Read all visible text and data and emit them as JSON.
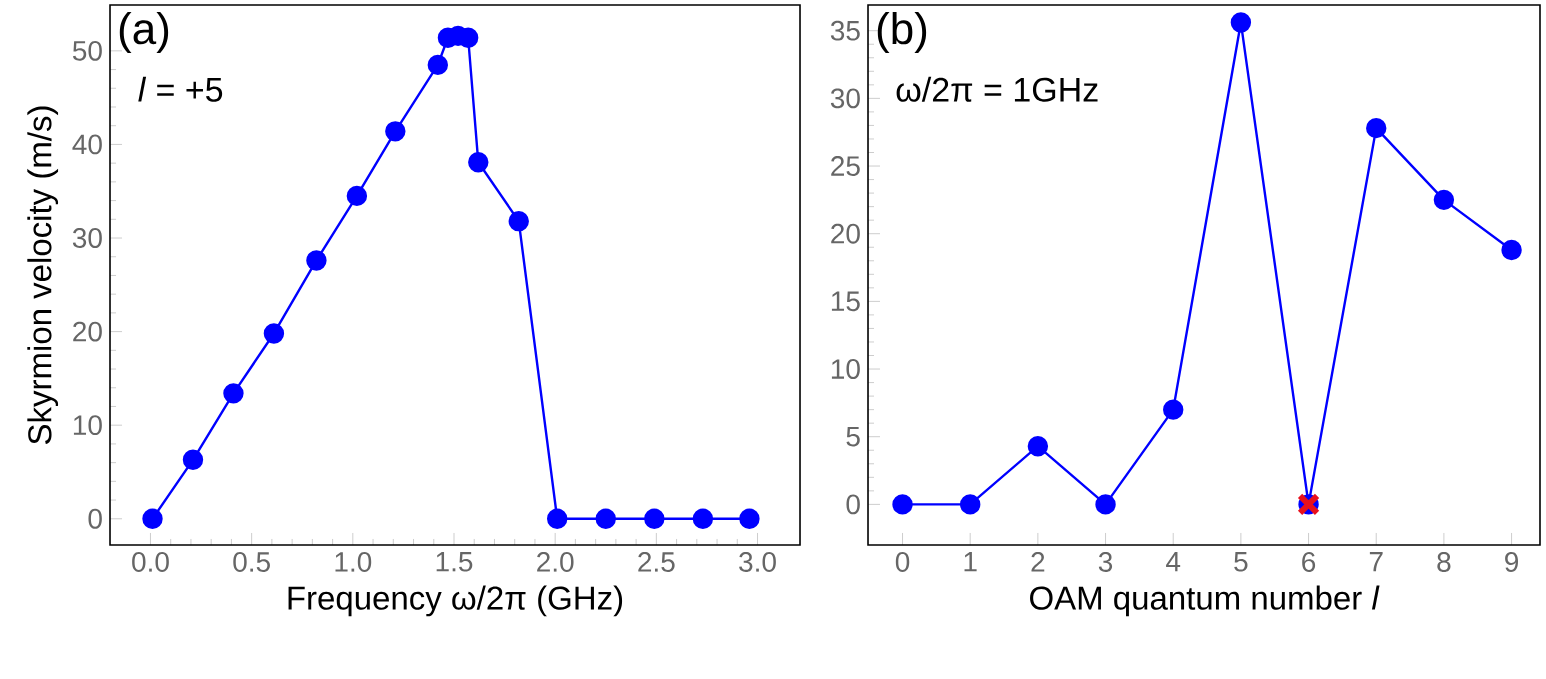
{
  "chart_data": [
    {
      "type": "line",
      "xlabel": "Frequency ω/2π (GHz)",
      "ylabel": "Skyrmion velocity (m/s)",
      "annotations": [
        "(a)",
        "*l* = +5"
      ],
      "x": [
        0.01,
        0.21,
        0.41,
        0.61,
        0.82,
        1.02,
        1.21,
        1.42,
        1.47,
        1.52,
        1.57,
        1.62,
        1.82,
        2.01,
        2.25,
        2.49,
        2.73,
        2.96
      ],
      "series": [
        {
          "color": "#0000ff",
          "values": [
            0,
            6.3,
            13.4,
            19.8,
            27.6,
            34.5,
            41.4,
            48.5,
            51.4,
            51.6,
            51.4,
            38.1,
            31.8,
            0,
            0,
            0,
            0,
            0
          ]
        }
      ],
      "xlim": [
        -0.2,
        3.21
      ],
      "ylim": [
        -2.8,
        54.9
      ],
      "xticks": [
        {
          "value": 0,
          "label": "0.0"
        },
        {
          "value": 0.5,
          "label": "0.5"
        },
        {
          "value": 1,
          "label": "1.0"
        },
        {
          "value": 1.5,
          "label": "1.5"
        },
        {
          "value": 2,
          "label": "2.0"
        },
        {
          "value": 2.5,
          "label": "2.5"
        },
        {
          "value": 3,
          "label": "3.0"
        }
      ],
      "yticks": [
        0,
        10,
        20,
        30,
        40,
        50
      ],
      "marker": "circle",
      "line_style": "solid"
    },
    {
      "type": "line",
      "xlabel": "OAM quantum number *l*",
      "annotations": [
        "(b)",
        "ω/2π = 1GHz"
      ],
      "x": [
        0,
        1,
        2,
        3,
        4,
        5,
        6,
        7,
        8,
        9
      ],
      "series": [
        {
          "color": "#0000ff",
          "values": [
            0,
            0,
            4.3,
            0,
            7,
            35.6,
            0,
            27.8,
            22.5,
            18.8
          ]
        },
        {
          "type": "scatter",
          "color": "#e8101c",
          "x": [
            6
          ],
          "values": [
            0
          ],
          "marker": "cross"
        }
      ],
      "xlim": [
        -0.51,
        9.42
      ],
      "ylim": [
        -3,
        36.9
      ],
      "xticks": [
        0,
        1,
        2,
        3,
        4,
        5,
        6,
        7,
        8,
        9
      ],
      "yticks": [
        0,
        5,
        10,
        15,
        20,
        25,
        30,
        35
      ],
      "marker": "circle",
      "line_style": "solid"
    }
  ]
}
